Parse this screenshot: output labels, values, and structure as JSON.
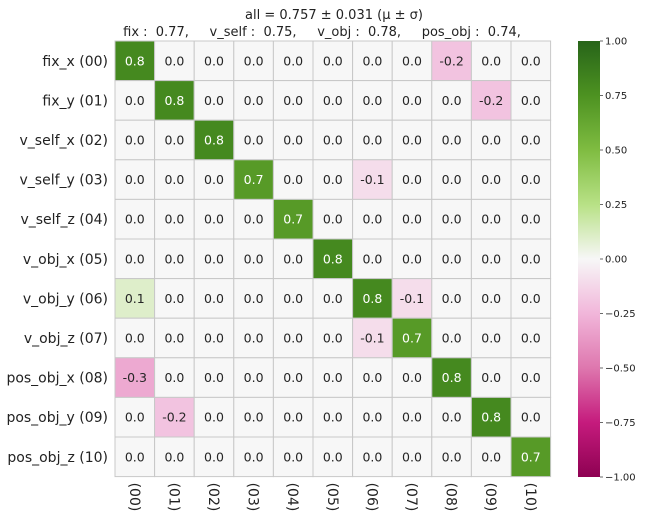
{
  "chart_data": {
    "type": "heatmap",
    "title": "all  =  0.757 ± 0.031  (μ ± σ)",
    "subtitle": "fix :  0.77,     v_self :  0.75,     v_obj :  0.78,     pos_obj :  0.74,",
    "row_labels": [
      "fix_x (00)",
      "fix_y (01)",
      "v_self_x (02)",
      "v_self_y (03)",
      "v_self_z (04)",
      "v_obj_x (05)",
      "v_obj_y (06)",
      "v_obj_z (07)",
      "pos_obj_x (08)",
      "pos_obj_y (09)",
      "pos_obj_z (10)"
    ],
    "col_labels": [
      "(00)",
      "(01)",
      "(02)",
      "(03)",
      "(04)",
      "(05)",
      "(06)",
      "(07)",
      "(08)",
      "(09)",
      "(10)"
    ],
    "values": [
      [
        0.8,
        0.0,
        0.0,
        0.0,
        -0.0,
        -0.0,
        0.0,
        -0.0,
        -0.2,
        -0.0,
        0.0
      ],
      [
        0.0,
        0.8,
        -0.0,
        0.0,
        -0.0,
        -0.0,
        -0.0,
        0.0,
        -0.0,
        -0.2,
        0.0
      ],
      [
        0.0,
        -0.0,
        0.8,
        0.0,
        -0.0,
        -0.0,
        0.0,
        0.0,
        -0.0,
        0.0,
        -0.0
      ],
      [
        0.0,
        -0.0,
        0.0,
        0.7,
        -0.0,
        -0.0,
        -0.1,
        0.0,
        0.0,
        -0.0,
        -0.0
      ],
      [
        0.0,
        0.0,
        -0.0,
        -0.0,
        0.7,
        0.0,
        -0.0,
        -0.0,
        -0.0,
        0.0,
        -0.0
      ],
      [
        -0.0,
        -0.0,
        -0.0,
        -0.0,
        0.0,
        0.8,
        -0.0,
        0.0,
        -0.0,
        -0.0,
        0.0
      ],
      [
        0.1,
        -0.0,
        0.0,
        -0.0,
        -0.0,
        -0.0,
        0.8,
        -0.1,
        -0.0,
        -0.0,
        0.0
      ],
      [
        -0.0,
        0.0,
        0.0,
        -0.0,
        -0.0,
        0.0,
        -0.1,
        0.7,
        0.0,
        0.0,
        -0.0
      ],
      [
        -0.3,
        -0.0,
        -0.0,
        0.0,
        -0.0,
        -0.0,
        -0.0,
        -0.0,
        0.8,
        -0.0,
        -0.0
      ],
      [
        -0.0,
        -0.2,
        0.0,
        -0.0,
        0.0,
        0.0,
        0.0,
        0.0,
        -0.0,
        0.8,
        -0.0
      ],
      [
        0.0,
        -0.0,
        -0.0,
        -0.0,
        0.0,
        -0.0,
        0.0,
        -0.0,
        -0.0,
        -0.0,
        0.7
      ]
    ],
    "colorbar": {
      "ticks": [
        "1.00",
        "0.75",
        "0.50",
        "0.25",
        "0.00",
        "−0.25",
        "−0.50",
        "−0.75",
        "−1.00"
      ],
      "tick_values": [
        1.0,
        0.75,
        0.5,
        0.25,
        0.0,
        -0.25,
        -0.5,
        -0.75,
        -1.0
      ],
      "range": [
        -1.0,
        1.0
      ],
      "colormap": "PiYG"
    },
    "grid": true
  }
}
